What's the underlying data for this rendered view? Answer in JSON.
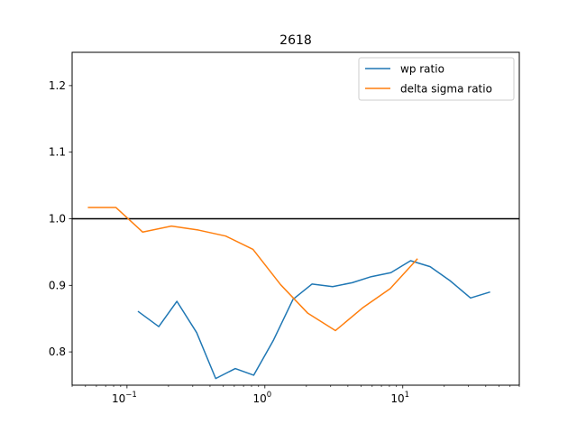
{
  "chart_data": {
    "type": "line",
    "title": "2618",
    "xlabel": "",
    "ylabel": "",
    "xscale": "log",
    "xlim": [
      0.04,
      70
    ],
    "ylim": [
      0.75,
      1.25
    ],
    "grid": false,
    "legend": "top-right",
    "x_ticks": [
      {
        "value": 0.1,
        "base": "10",
        "exp": "−1"
      },
      {
        "value": 1,
        "base": "10",
        "exp": "0"
      },
      {
        "value": 10,
        "base": "10",
        "exp": "1"
      }
    ],
    "y_ticks": [
      "0.8",
      "0.9",
      "1.0",
      "1.1",
      "1.2"
    ],
    "reference_line": {
      "y": 1.0,
      "color": "#000000"
    },
    "series": [
      {
        "name": "wp ratio",
        "color": "#1f77b4",
        "x": [
          0.12,
          0.17,
          0.23,
          0.32,
          0.44,
          0.61,
          0.83,
          1.15,
          1.6,
          2.2,
          3.1,
          4.3,
          5.9,
          8.2,
          11.4,
          15.8,
          22,
          31,
          43
        ],
        "y": [
          0.861,
          0.838,
          0.876,
          0.829,
          0.76,
          0.775,
          0.765,
          0.817,
          0.879,
          0.902,
          0.898,
          0.904,
          0.913,
          0.919,
          0.937,
          0.928,
          0.907,
          0.881,
          0.89
        ]
      },
      {
        "name": "delta sigma ratio",
        "color": "#ff7f0e",
        "x": [
          0.052,
          0.083,
          0.13,
          0.21,
          0.33,
          0.52,
          0.82,
          1.3,
          2.05,
          3.25,
          5.1,
          8.1,
          12.8
        ],
        "y": [
          1.017,
          1.017,
          0.98,
          0.989,
          0.983,
          0.974,
          0.954,
          0.901,
          0.858,
          0.832,
          0.866,
          0.895,
          0.94
        ]
      }
    ]
  }
}
